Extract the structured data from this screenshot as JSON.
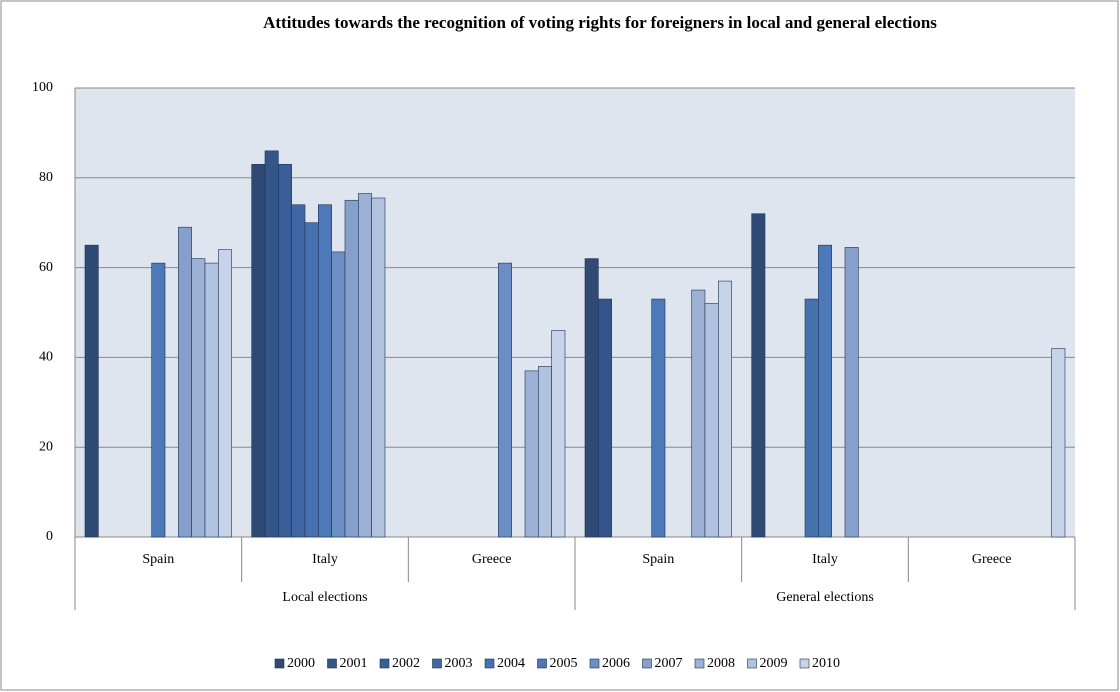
{
  "chart_data": {
    "type": "bar",
    "title": "Attitudes towards the recognition of voting rights for foreigners in local and general elections",
    "categories": [
      "Spain",
      "Italy",
      "Greece",
      "Spain",
      "Italy",
      "Greece"
    ],
    "group_labels": [
      "Local elections",
      "General elections"
    ],
    "series": [
      {
        "name": "2000",
        "color": "#2e4a75",
        "values": [
          65,
          83,
          null,
          62,
          72,
          null
        ]
      },
      {
        "name": "2001",
        "color": "#34558a",
        "values": [
          null,
          86,
          null,
          53,
          null,
          null
        ]
      },
      {
        "name": "2002",
        "color": "#3a5f98",
        "values": [
          null,
          83,
          null,
          null,
          null,
          null
        ]
      },
      {
        "name": "2003",
        "color": "#3f68a5",
        "values": [
          null,
          74,
          null,
          null,
          null,
          null
        ]
      },
      {
        "name": "2004",
        "color": "#4671af",
        "values": [
          null,
          70,
          null,
          null,
          53,
          null
        ]
      },
      {
        "name": "2005",
        "color": "#4d79b8",
        "values": [
          61,
          74,
          null,
          53,
          65,
          null
        ]
      },
      {
        "name": "2006",
        "color": "#6b8fc3",
        "values": [
          null,
          63.5,
          61,
          null,
          null,
          null
        ]
      },
      {
        "name": "2007",
        "color": "#869fcb",
        "values": [
          69,
          75,
          null,
          null,
          64.5,
          null
        ]
      },
      {
        "name": "2008",
        "color": "#9cb1d5",
        "values": [
          62,
          76.5,
          37,
          55,
          null,
          null
        ]
      },
      {
        "name": "2009",
        "color": "#b1c2de",
        "values": [
          61,
          75.5,
          38,
          52,
          null,
          null
        ]
      },
      {
        "name": "2010",
        "color": "#c6d3e8",
        "values": [
          64,
          null,
          46,
          57,
          null,
          42
        ]
      }
    ],
    "ylim": [
      0,
      100
    ],
    "yticks": [
      0,
      20,
      40,
      60,
      80,
      100
    ],
    "grid": true,
    "legend": "bottom"
  }
}
